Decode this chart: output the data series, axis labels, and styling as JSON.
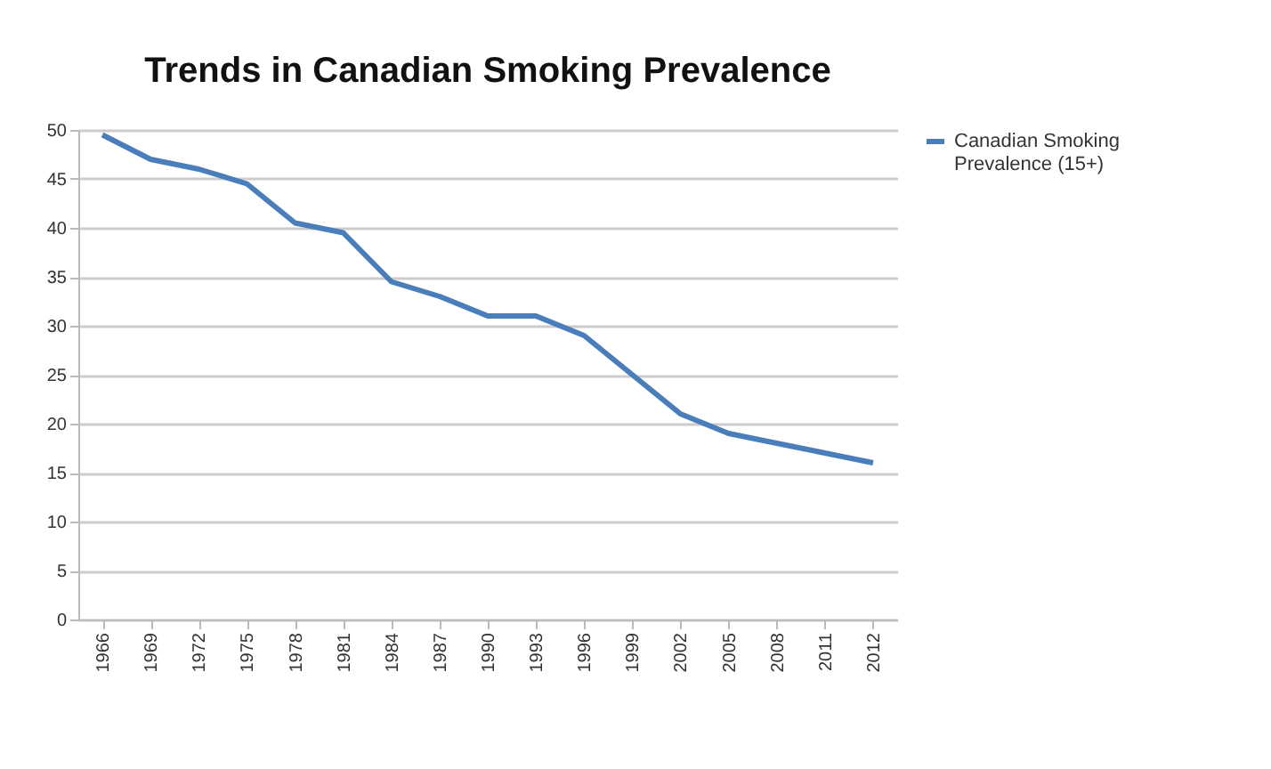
{
  "chart_data": {
    "type": "line",
    "title": "Trends in Canadian Smoking Prevalence",
    "categories": [
      "1966",
      "1969",
      "1972",
      "1975",
      "1978",
      "1981",
      "1984",
      "1987",
      "1990",
      "1993",
      "1996",
      "1999",
      "2002",
      "2005",
      "2008",
      "2011",
      "2012"
    ],
    "series": [
      {
        "name": "Canadian Smoking Prevalence (15+)",
        "color": "#4a7ebb",
        "values": [
          49.5,
          47,
          46,
          44.5,
          40.5,
          39.5,
          34.5,
          33,
          31,
          31,
          29,
          25,
          21,
          19,
          18,
          17,
          16
        ]
      }
    ],
    "ylim": [
      0,
      50
    ],
    "yticks": [
      0,
      5,
      10,
      15,
      20,
      25,
      30,
      35,
      40,
      45,
      50
    ],
    "grid": "y",
    "legend": "right",
    "marker": "none",
    "line_style": "solid"
  }
}
